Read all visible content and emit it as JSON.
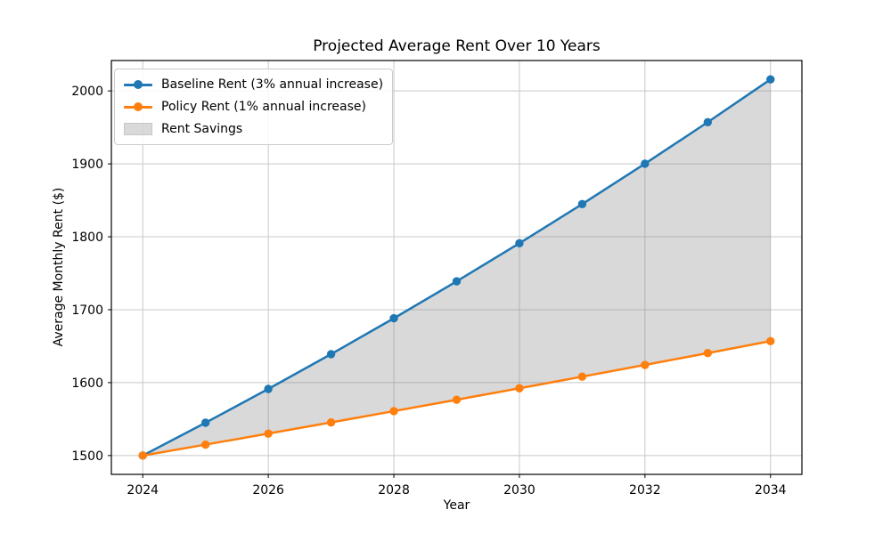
{
  "chart_data": {
    "type": "line",
    "title": "Projected Average Rent Over 10 Years",
    "xlabel": "Year",
    "ylabel": "Average Monthly Rent ($)",
    "x": [
      2024,
      2025,
      2026,
      2027,
      2028,
      2029,
      2030,
      2031,
      2032,
      2033,
      2034
    ],
    "series": [
      {
        "name": "Baseline Rent (3% annual increase)",
        "color": "#1f77b4",
        "marker": "circle",
        "values": [
          1500.0,
          1545.0,
          1591.35,
          1639.09,
          1688.26,
          1738.91,
          1791.08,
          1844.81,
          1900.15,
          1957.16,
          2015.87
        ]
      },
      {
        "name": "Policy Rent (1% annual increase)",
        "color": "#ff7f0e",
        "marker": "circle",
        "values": [
          1500.0,
          1515.0,
          1530.15,
          1545.45,
          1560.91,
          1576.52,
          1592.28,
          1608.2,
          1624.29,
          1640.53,
          1656.93
        ]
      }
    ],
    "fill_between": {
      "label": "Rent Savings",
      "between_series": [
        0,
        1
      ],
      "color": "#808080",
      "opacity": 0.3
    },
    "xticks": [
      2024,
      2026,
      2028,
      2030,
      2032,
      2034
    ],
    "yticks": [
      1500,
      1600,
      1700,
      1800,
      1900,
      2000
    ],
    "xlim": [
      2023.5,
      2034.5
    ],
    "ylim": [
      1474.2,
      2041.7
    ],
    "grid": true,
    "legend_position": "upper left",
    "style": {
      "background": "#ffffff",
      "axis_color": "#000000",
      "grid_color": "#c8c8c8"
    }
  }
}
